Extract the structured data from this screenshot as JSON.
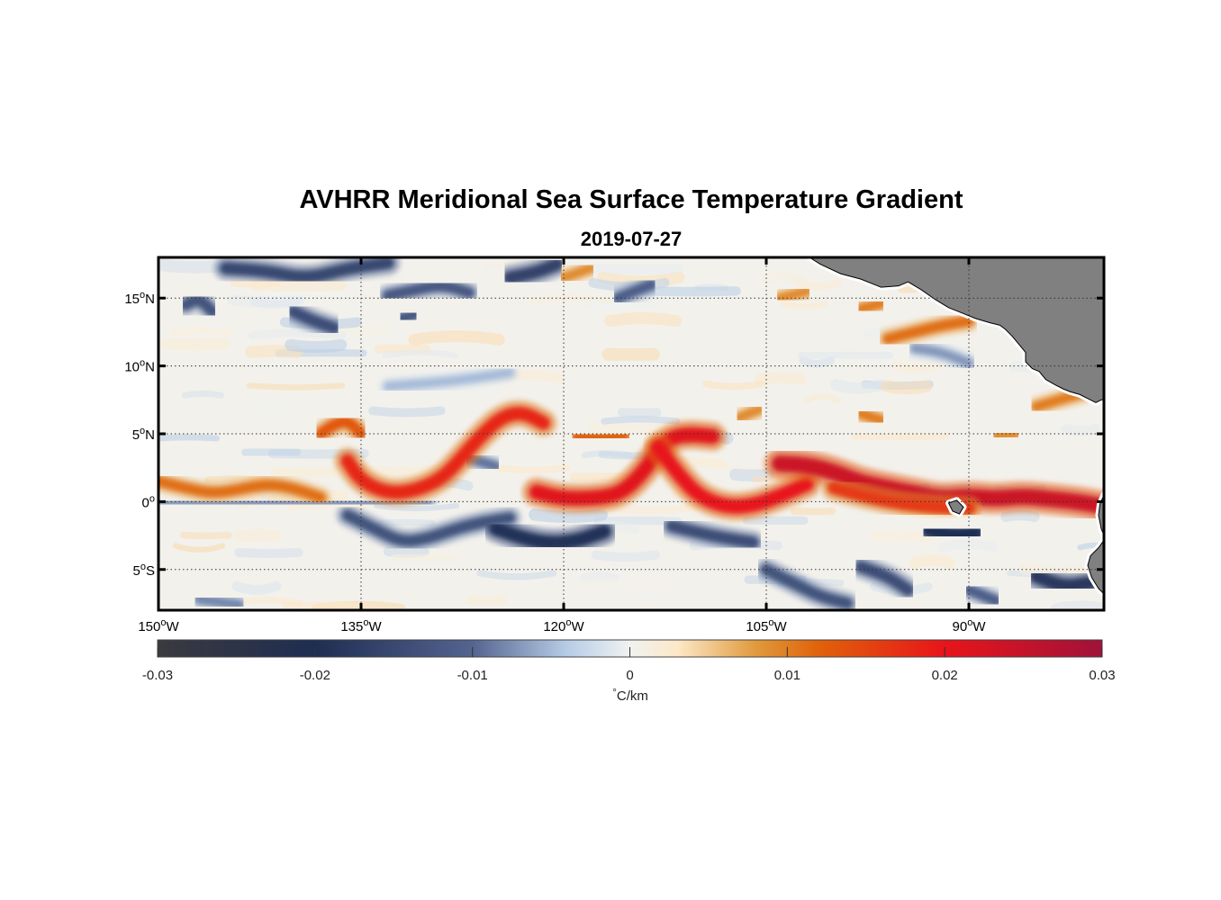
{
  "title": "AVHRR Meridional Sea Surface Temperature Gradient",
  "subtitle": "2019-07-27",
  "map": {
    "lon_range": [
      -150,
      -80
    ],
    "lat_range": [
      -8,
      18
    ],
    "grid": "dotted",
    "land_color": "#808080",
    "lat_ticks": [
      {
        "value": 15,
        "num": "15",
        "hemi": "N"
      },
      {
        "value": 10,
        "num": "10",
        "hemi": "N"
      },
      {
        "value": 5,
        "num": "5",
        "hemi": "N"
      },
      {
        "value": 0,
        "num": "0",
        "hemi": ""
      },
      {
        "value": -5,
        "num": "5",
        "hemi": "S"
      }
    ],
    "lon_ticks": [
      {
        "value": -150,
        "num": "150",
        "hemi": "W"
      },
      {
        "value": -135,
        "num": "135",
        "hemi": "W"
      },
      {
        "value": -120,
        "num": "120",
        "hemi": "W"
      },
      {
        "value": -105,
        "num": "105",
        "hemi": "W"
      },
      {
        "value": -90,
        "num": "90",
        "hemi": "W"
      }
    ]
  },
  "colorbar": {
    "min": -0.03,
    "max": 0.03,
    "ticks": [
      "-0.03",
      "-0.02",
      "-0.01",
      "0",
      "0.01",
      "0.02",
      "0.03"
    ],
    "label_degree": "°",
    "label_unit": "C/km",
    "stops": [
      {
        "value": -0.03,
        "color": "#3a3a3f"
      },
      {
        "value": -0.02,
        "color": "#1f2d52"
      },
      {
        "value": -0.01,
        "color": "#53648f"
      },
      {
        "value": -0.004,
        "color": "#b6cce6"
      },
      {
        "value": 0,
        "color": "#f0f2f0"
      },
      {
        "value": 0.003,
        "color": "#fde8c8"
      },
      {
        "value": 0.008,
        "color": "#e09a3c"
      },
      {
        "value": 0.012,
        "color": "#e0620a"
      },
      {
        "value": 0.02,
        "color": "#e8141a"
      },
      {
        "value": 0.03,
        "color": "#a0123a"
      }
    ]
  },
  "features": {
    "fronts_positive": [
      {
        "points": [
          [
            -150,
            1.5
          ],
          [
            -148,
            1.0
          ],
          [
            -146,
            0.6
          ],
          [
            -144,
            0.9
          ],
          [
            -142,
            1.3
          ],
          [
            -140,
            1.0
          ],
          [
            -138,
            0.3
          ]
        ],
        "value": 0.011
      },
      {
        "points": [
          [
            -138,
            5.0
          ],
          [
            -137,
            5.7
          ],
          [
            -136,
            6.0
          ],
          [
            -135,
            5.0
          ]
        ],
        "value": 0.013
      },
      {
        "points": [
          [
            -136,
            3.0
          ],
          [
            -135,
            1.5
          ],
          [
            -133,
            0.6
          ],
          [
            -131,
            0.8
          ],
          [
            -129,
            1.7
          ],
          [
            -127.5,
            3.3
          ],
          [
            -126,
            5.0
          ],
          [
            -124.5,
            6.3
          ],
          [
            -123,
            6.6
          ],
          [
            -121.5,
            5.8
          ]
        ],
        "value": 0.018
      },
      {
        "points": [
          [
            -122,
            0.7
          ],
          [
            -120,
            0.2
          ],
          [
            -117,
            0.3
          ],
          [
            -115.5,
            0.8
          ],
          [
            -114,
            2.3
          ],
          [
            -112.5,
            4.5
          ],
          [
            -111,
            5.0
          ],
          [
            -109,
            4.8
          ]
        ],
        "value": 0.021
      },
      {
        "points": [
          [
            -113,
            4.0
          ],
          [
            -111.5,
            2.0
          ],
          [
            -110,
            0.4
          ],
          [
            -108,
            -0.4
          ],
          [
            -106,
            -0.3
          ],
          [
            -104,
            0.4
          ],
          [
            -102,
            1.3
          ]
        ],
        "value": 0.02
      },
      {
        "points": [
          [
            -104,
            2.8
          ],
          [
            -102,
            2.7
          ],
          [
            -100,
            2.2
          ],
          [
            -98,
            1.4
          ],
          [
            -96,
            1.0
          ],
          [
            -94,
            0.6
          ],
          [
            -92,
            0.2
          ],
          [
            -90,
            0.4
          ],
          [
            -88,
            0.2
          ],
          [
            -86,
            0.4
          ],
          [
            -84,
            0.2
          ],
          [
            -82,
            0.0
          ],
          [
            -80.3,
            -0.3
          ]
        ],
        "value": 0.024
      },
      {
        "points": [
          [
            -100,
            1.0
          ],
          [
            -97,
            0.2
          ],
          [
            -94,
            -0.3
          ],
          [
            -90,
            -0.5
          ]
        ],
        "value": 0.016
      },
      {
        "points": [
          [
            -119,
            4.8
          ],
          [
            -117,
            4.7
          ],
          [
            -115.5,
            4.9
          ]
        ],
        "value": 0.012
      },
      {
        "points": [
          [
            -96,
            12.0
          ],
          [
            -94,
            12.5
          ],
          [
            -92,
            13.0
          ],
          [
            -90,
            13.3
          ]
        ],
        "value": 0.011
      },
      {
        "points": [
          [
            -88,
            13.0
          ],
          [
            -86,
            13.2
          ]
        ],
        "value": 0.014
      },
      {
        "points": [
          [
            -98,
            14.2
          ],
          [
            -96.5,
            14.6
          ]
        ],
        "value": 0.01
      },
      {
        "points": [
          [
            -104,
            15.0
          ],
          [
            -102,
            15.5
          ]
        ],
        "value": 0.009
      },
      {
        "points": [
          [
            -85,
            7.0
          ],
          [
            -83,
            7.6
          ],
          [
            -81.5,
            8.0
          ]
        ],
        "value": 0.01
      },
      {
        "points": [
          [
            -120,
            16.5
          ],
          [
            -118,
            17.2
          ]
        ],
        "value": 0.009
      },
      {
        "points": [
          [
            -81,
            17.6
          ],
          [
            -80.5,
            17.8
          ]
        ],
        "value": 0.012
      },
      {
        "points": [
          [
            -98,
            6.5
          ],
          [
            -96.5,
            6.0
          ]
        ],
        "value": 0.01
      },
      {
        "points": [
          [
            -107,
            6.2
          ],
          [
            -105.5,
            6.8
          ]
        ],
        "value": 0.009
      },
      {
        "points": [
          [
            -88,
            4.8
          ],
          [
            -86.5,
            5.0
          ]
        ],
        "value": 0.009
      }
    ],
    "fronts_negative": [
      {
        "points": [
          [
            -150,
            0.0
          ],
          [
            -145,
            -0.1
          ],
          [
            -140,
            0.0
          ],
          [
            -135,
            -0.2
          ],
          [
            -130,
            0.0
          ]
        ],
        "value": -0.007
      },
      {
        "points": [
          [
            -136,
            -1.0
          ],
          [
            -134,
            -2.0
          ],
          [
            -132,
            -3.0
          ],
          [
            -130,
            -2.7
          ],
          [
            -128,
            -2.0
          ],
          [
            -126,
            -1.5
          ],
          [
            -124,
            -1.2
          ]
        ],
        "value": -0.013
      },
      {
        "points": [
          [
            -125,
            -2.0
          ],
          [
            -123,
            -2.7
          ],
          [
            -121,
            -3.1
          ],
          [
            -119,
            -2.9
          ],
          [
            -117,
            -2.2
          ]
        ],
        "value": -0.019
      },
      {
        "points": [
          [
            -112,
            -1.8
          ],
          [
            -110,
            -2.3
          ],
          [
            -108,
            -2.7
          ],
          [
            -106,
            -3.0
          ]
        ],
        "value": -0.014
      },
      {
        "points": [
          [
            -98,
            -4.8
          ],
          [
            -96,
            -5.5
          ],
          [
            -94.5,
            -6.5
          ]
        ],
        "value": -0.014
      },
      {
        "points": [
          [
            -93,
            -2.1
          ],
          [
            -91,
            -2.5
          ],
          [
            -89.5,
            -2.3
          ]
        ],
        "value": -0.02
      },
      {
        "points": [
          [
            -105,
            -5.0
          ],
          [
            -103,
            -6.0
          ],
          [
            -101,
            -7.0
          ],
          [
            -99,
            -7.5
          ]
        ],
        "value": -0.013
      },
      {
        "points": [
          [
            -85,
            -5.5
          ],
          [
            -83,
            -6.3
          ],
          [
            -81,
            -6.0
          ]
        ],
        "value": -0.018
      },
      {
        "points": [
          [
            -140,
            14.0
          ],
          [
            -138.5,
            13.3
          ],
          [
            -137,
            12.8
          ]
        ],
        "value": -0.014
      },
      {
        "points": [
          [
            -148,
            14.5
          ],
          [
            -147,
            15.0
          ],
          [
            -146,
            14.0
          ]
        ],
        "value": -0.013
      },
      {
        "points": [
          [
            -145,
            17.2
          ],
          [
            -142,
            17.0
          ],
          [
            -139,
            16.4
          ],
          [
            -136,
            17.2
          ],
          [
            -133,
            17.6
          ]
        ],
        "value": -0.015
      },
      {
        "points": [
          [
            -133,
            15.2
          ],
          [
            -131,
            15.6
          ],
          [
            -129,
            16.0
          ],
          [
            -127,
            15.4
          ]
        ],
        "value": -0.012
      },
      {
        "points": [
          [
            -124,
            16.5
          ],
          [
            -122,
            16.9
          ],
          [
            -120.5,
            17.5
          ]
        ],
        "value": -0.016
      },
      {
        "points": [
          [
            -132,
            13.5
          ],
          [
            -131,
            13.8
          ]
        ],
        "value": -0.012
      },
      {
        "points": [
          [
            -116,
            15.0
          ],
          [
            -113.5,
            16.0
          ]
        ],
        "value": -0.011
      },
      {
        "points": [
          [
            -133,
            8.5
          ],
          [
            -128,
            8.9
          ],
          [
            -124,
            9.5
          ]
        ],
        "value": -0.005
      },
      {
        "points": [
          [
            -147,
            -7.2
          ],
          [
            -144,
            -7.6
          ]
        ],
        "value": -0.008
      },
      {
        "points": [
          [
            -90,
            -6.5
          ],
          [
            -88,
            -7.3
          ]
        ],
        "value": -0.011
      },
      {
        "points": [
          [
            -94,
            11.3
          ],
          [
            -92,
            11.0
          ],
          [
            -90,
            10.2
          ]
        ],
        "value": -0.007
      },
      {
        "points": [
          [
            -127,
            3.2
          ],
          [
            -125,
            2.6
          ]
        ],
        "value": -0.009
      }
    ],
    "land": [
      {
        "name": "central-america",
        "points": [
          [
            -101.8,
            18
          ],
          [
            -101,
            17.5
          ],
          [
            -99.5,
            16.8
          ],
          [
            -98,
            16.4
          ],
          [
            -96.5,
            15.8
          ],
          [
            -95.2,
            15.9
          ],
          [
            -94.5,
            16.2
          ],
          [
            -93.5,
            15.6
          ],
          [
            -92.5,
            14.9
          ],
          [
            -91.5,
            14.3
          ],
          [
            -90.5,
            13.9
          ],
          [
            -89.5,
            13.5
          ],
          [
            -88.5,
            13.2
          ],
          [
            -87.7,
            13.0
          ],
          [
            -87.3,
            12.7
          ],
          [
            -86.8,
            12.2
          ],
          [
            -86.3,
            11.6
          ],
          [
            -85.8,
            11.0
          ],
          [
            -85.8,
            10.3
          ],
          [
            -85.3,
            9.8
          ],
          [
            -84.8,
            9.6
          ],
          [
            -84.3,
            9.0
          ],
          [
            -83.6,
            8.6
          ],
          [
            -83.0,
            8.3
          ],
          [
            -82.5,
            8.1
          ],
          [
            -81.8,
            7.9
          ],
          [
            -81.2,
            7.6
          ],
          [
            -80.6,
            7.3
          ],
          [
            -80.2,
            7.5
          ],
          [
            -80,
            7.5
          ],
          [
            -80,
            18
          ],
          [
            -101.8,
            18
          ]
        ]
      },
      {
        "name": "south-america",
        "points": [
          [
            -80.0,
            0.5
          ],
          [
            -80.3,
            -0.2
          ],
          [
            -80.4,
            -1.0
          ],
          [
            -80.2,
            -2.0
          ],
          [
            -79.9,
            -2.7
          ],
          [
            -80.4,
            -3.4
          ],
          [
            -81.0,
            -4.0
          ],
          [
            -81.2,
            -4.7
          ],
          [
            -80.9,
            -5.6
          ],
          [
            -80.4,
            -6.4
          ],
          [
            -80,
            -6.8
          ],
          [
            -80,
            0.5
          ]
        ]
      },
      {
        "name": "galapagos",
        "points": [
          [
            -91.5,
            -0.1
          ],
          [
            -90.9,
            0.1
          ],
          [
            -90.4,
            -0.4
          ],
          [
            -90.7,
            -0.9
          ],
          [
            -91.2,
            -0.7
          ]
        ]
      }
    ]
  }
}
